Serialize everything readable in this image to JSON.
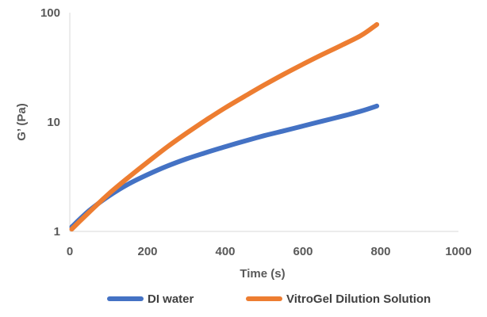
{
  "chart_data": {
    "type": "line",
    "xlabel": "Time (s)",
    "ylabel": "G’ (Pa)",
    "x_scale": "linear",
    "y_scale": "log",
    "xlim": [
      0,
      1000
    ],
    "ylim": [
      1,
      100
    ],
    "x_ticks": [
      0,
      200,
      400,
      600,
      800,
      1000
    ],
    "y_ticks": [
      1,
      10,
      100
    ],
    "x_tick_labels": [
      "0",
      "200",
      "400",
      "600",
      "800",
      "1000"
    ],
    "y_tick_labels": [
      "1",
      "10",
      "100"
    ],
    "grid": false,
    "legend_position": "bottom",
    "series": [
      {
        "name": "DI water",
        "color": "#4472C4",
        "x": [
          5,
          50,
          100,
          150,
          200,
          250,
          300,
          350,
          400,
          450,
          500,
          550,
          600,
          650,
          700,
          750,
          790
        ],
        "y": [
          1.1,
          1.55,
          2.1,
          2.7,
          3.3,
          3.95,
          4.6,
          5.25,
          5.95,
          6.7,
          7.5,
          8.3,
          9.2,
          10.2,
          11.3,
          12.6,
          14
        ]
      },
      {
        "name": "VitroGel Dilution Solution",
        "color": "#ED7D31",
        "x": [
          5,
          50,
          100,
          150,
          200,
          250,
          300,
          350,
          400,
          450,
          500,
          550,
          600,
          650,
          700,
          750,
          790
        ],
        "y": [
          1.05,
          1.5,
          2.2,
          3.1,
          4.3,
          5.9,
          7.9,
          10.4,
          13.5,
          17.2,
          21.8,
          27.3,
          33.8,
          41.5,
          50.5,
          62,
          78
        ]
      }
    ]
  }
}
